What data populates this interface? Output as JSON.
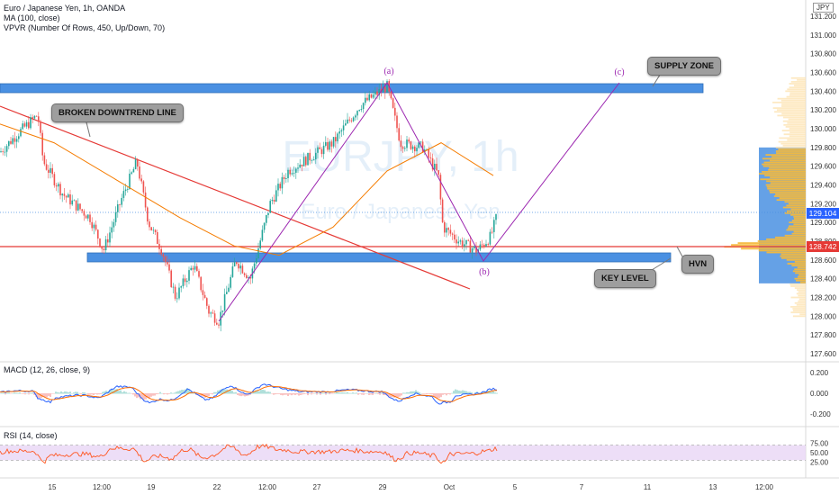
{
  "header": {
    "symbol_line": "Euro / Japanese Yen, 1h, OANDA",
    "ma_line": "MA (100, close)",
    "vpvr_line": "VPVR (Number Of Rows, 450, Up/Down, 70)",
    "currency": "JPY",
    "watermark_symbol": "EURJPY, 1h",
    "watermark_name": "Euro / Japanese Yen"
  },
  "annotations": {
    "supply_zone": "SUPPLY ZONE",
    "broken_downtrend": "BROKEN DOWNTREND LINE",
    "key_level": "KEY LEVEL",
    "hvn": "HVN",
    "wave_a": "(a)",
    "wave_b": "(b)",
    "wave_c": "(c)"
  },
  "price_labels": {
    "current": "129.104",
    "key_line": "128.742"
  },
  "colors": {
    "zone_fill": "#4a90e2",
    "up_candle": "#26a69a",
    "down_candle": "#ef5350",
    "ma": "#f57c00",
    "trend_line": "#e53935",
    "wave": "#9c27b0",
    "macd_line": "#2962ff",
    "signal_line": "#ff6d00",
    "rsi_line": "#ff5722",
    "rsi_band": "#e8d6f5"
  },
  "chart_data": [
    {
      "type": "candlestick",
      "name": "Euro / Japanese Yen, 1h, OANDA",
      "y_axis_ticks": [
        "131.200",
        "131.000",
        "130.800",
        "130.600",
        "130.400",
        "130.200",
        "130.000",
        "129.800",
        "129.600",
        "129.400",
        "129.200",
        "129.000",
        "128.800",
        "128.600",
        "128.400",
        "128.200",
        "128.000",
        "127.800",
        "127.600"
      ],
      "ylim": [
        127.55,
        131.3
      ],
      "x_axis_ticks": [
        "15",
        "12:00",
        "19",
        "22",
        "12:00",
        "27",
        "29",
        "Oct",
        "5",
        "7",
        "11",
        "13",
        "12:00"
      ],
      "ma": "MA (100, close)",
      "path_points": [
        {
          "x": 0,
          "y": 129.75
        },
        {
          "x": 20,
          "y": 129.95
        },
        {
          "x": 42,
          "y": 130.15
        },
        {
          "x": 48,
          "y": 129.65
        },
        {
          "x": 70,
          "y": 129.3
        },
        {
          "x": 100,
          "y": 129.05
        },
        {
          "x": 115,
          "y": 128.7
        },
        {
          "x": 135,
          "y": 129.25
        },
        {
          "x": 152,
          "y": 129.65
        },
        {
          "x": 165,
          "y": 129.0
        },
        {
          "x": 180,
          "y": 128.7
        },
        {
          "x": 195,
          "y": 128.2
        },
        {
          "x": 215,
          "y": 128.55
        },
        {
          "x": 232,
          "y": 128.05
        },
        {
          "x": 243,
          "y": 127.95
        },
        {
          "x": 262,
          "y": 128.6
        },
        {
          "x": 278,
          "y": 128.4
        },
        {
          "x": 300,
          "y": 129.2
        },
        {
          "x": 320,
          "y": 129.55
        },
        {
          "x": 345,
          "y": 129.7
        },
        {
          "x": 370,
          "y": 129.85
        },
        {
          "x": 400,
          "y": 130.25
        },
        {
          "x": 430,
          "y": 130.45
        },
        {
          "x": 445,
          "y": 129.85
        },
        {
          "x": 470,
          "y": 129.8
        },
        {
          "x": 487,
          "y": 129.5
        },
        {
          "x": 492,
          "y": 128.95
        },
        {
          "x": 510,
          "y": 128.8
        },
        {
          "x": 530,
          "y": 128.7
        },
        {
          "x": 545,
          "y": 128.85
        },
        {
          "x": 553,
          "y": 129.1
        }
      ],
      "ma_points": [
        {
          "x": 0,
          "y": 130.05
        },
        {
          "x": 60,
          "y": 129.85
        },
        {
          "x": 130,
          "y": 129.45
        },
        {
          "x": 200,
          "y": 129.05
        },
        {
          "x": 260,
          "y": 128.75
        },
        {
          "x": 310,
          "y": 128.65
        },
        {
          "x": 370,
          "y": 128.95
        },
        {
          "x": 430,
          "y": 129.55
        },
        {
          "x": 490,
          "y": 129.85
        },
        {
          "x": 548,
          "y": 129.5
        }
      ]
    },
    {
      "type": "line",
      "name": "MACD (12, 26, close, 9)",
      "y_axis_ticks": [
        "0.200",
        "0.000",
        "-0.200"
      ],
      "ylim": [
        -0.3,
        0.3
      ]
    },
    {
      "type": "line",
      "name": "RSI (14, close)",
      "y_axis_ticks": [
        "75.00",
        "50.00",
        "25.00"
      ],
      "ylim": [
        20,
        80
      ],
      "band": [
        30,
        70
      ]
    }
  ]
}
